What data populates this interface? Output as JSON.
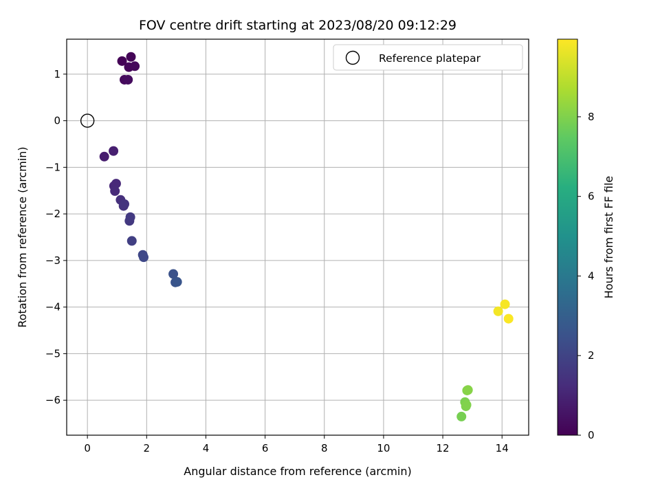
{
  "chart_data": {
    "type": "scatter",
    "title": "FOV centre drift starting at 2023/08/20 09:12:29",
    "xlabel": "Angular distance from reference (arcmin)",
    "ylabel": "Rotation from reference (arcmin)",
    "xlim": [
      -0.7,
      14.9
    ],
    "ylim": [
      -6.75,
      1.75
    ],
    "xticks": [
      0,
      2,
      4,
      6,
      8,
      10,
      12,
      14
    ],
    "yticks": [
      -6,
      -5,
      -4,
      -3,
      -2,
      -1,
      0,
      1
    ],
    "grid": true,
    "legend": {
      "placement": "top-right",
      "entries": [
        "Reference platepar"
      ]
    },
    "reference_point": {
      "x": 0,
      "y": 0,
      "label": "Reference platepar"
    },
    "colorbar": {
      "label": "Hours from first FF file",
      "range": [
        0,
        9.95
      ],
      "ticks": [
        0,
        2,
        4,
        6,
        8
      ],
      "colormap": "viridis"
    },
    "points": [
      {
        "x": 1.17,
        "y": 1.28,
        "h": 0.05
      },
      {
        "x": 1.47,
        "y": 1.37,
        "h": 0.1
      },
      {
        "x": 1.4,
        "y": 1.15,
        "h": 0.15
      },
      {
        "x": 1.6,
        "y": 1.17,
        "h": 0.2
      },
      {
        "x": 1.25,
        "y": 0.88,
        "h": 0.25
      },
      {
        "x": 1.37,
        "y": 0.88,
        "h": 0.3
      },
      {
        "x": 0.57,
        "y": -0.77,
        "h": 0.8
      },
      {
        "x": 0.88,
        "y": -0.65,
        "h": 0.85
      },
      {
        "x": 0.9,
        "y": -1.4,
        "h": 1.1
      },
      {
        "x": 0.97,
        "y": -1.35,
        "h": 1.15
      },
      {
        "x": 0.93,
        "y": -1.51,
        "h": 1.2
      },
      {
        "x": 1.12,
        "y": -1.7,
        "h": 1.35
      },
      {
        "x": 1.22,
        "y": -1.83,
        "h": 1.45
      },
      {
        "x": 1.25,
        "y": -1.79,
        "h": 1.5
      },
      {
        "x": 1.42,
        "y": -2.15,
        "h": 1.65
      },
      {
        "x": 1.45,
        "y": -2.07,
        "h": 1.7
      },
      {
        "x": 1.5,
        "y": -2.58,
        "h": 1.85
      },
      {
        "x": 1.87,
        "y": -2.88,
        "h": 2.1
      },
      {
        "x": 1.9,
        "y": -2.93,
        "h": 2.15
      },
      {
        "x": 2.9,
        "y": -3.29,
        "h": 2.5
      },
      {
        "x": 2.97,
        "y": -3.47,
        "h": 2.55
      },
      {
        "x": 3.03,
        "y": -3.46,
        "h": 2.6
      },
      {
        "x": 12.63,
        "y": -6.35,
        "h": 7.9
      },
      {
        "x": 12.75,
        "y": -6.04,
        "h": 7.95
      },
      {
        "x": 12.78,
        "y": -6.13,
        "h": 8.0
      },
      {
        "x": 12.8,
        "y": -6.1,
        "h": 8.05
      },
      {
        "x": 12.82,
        "y": -5.79,
        "h": 8.1
      },
      {
        "x": 12.85,
        "y": -5.78,
        "h": 8.15
      },
      {
        "x": 13.87,
        "y": -4.09,
        "h": 9.8
      },
      {
        "x": 14.1,
        "y": -3.94,
        "h": 9.85
      },
      {
        "x": 14.22,
        "y": -4.25,
        "h": 9.9
      }
    ]
  }
}
